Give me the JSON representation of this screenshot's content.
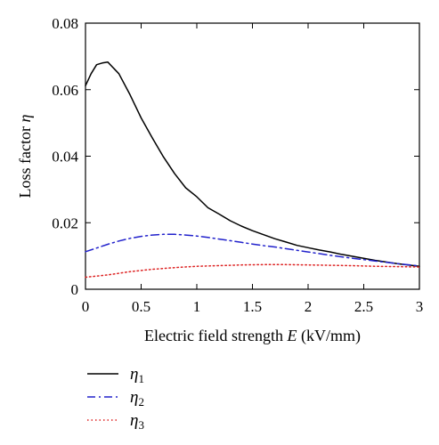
{
  "chart_data": {
    "type": "line",
    "xlabel_text": "Electric field strength ",
    "xlabel_symbol": "E",
    "xlabel_unit": " (kV/mm)",
    "ylabel_text": "Loss factor ",
    "ylabel_symbol": "η",
    "xlim": [
      0,
      3
    ],
    "ylim": [
      0,
      0.08
    ],
    "x_ticks": [
      "0",
      "0.5",
      "1",
      "1.5",
      "2",
      "2.5",
      "3"
    ],
    "y_ticks": [
      "0",
      "0.02",
      "0.04",
      "0.06",
      "0.08"
    ],
    "grid": false,
    "legend_position": "below",
    "series": [
      {
        "name": "η1",
        "symbol": "η",
        "subscript": "1",
        "color": "#000000",
        "dash": "solid",
        "x": [
          0,
          0.05,
          0.1,
          0.15,
          0.2,
          0.3,
          0.4,
          0.5,
          0.6,
          0.7,
          0.8,
          0.9,
          1.0,
          1.1,
          1.2,
          1.3,
          1.4,
          1.5,
          1.6,
          1.7,
          1.8,
          1.9,
          2.0,
          2.1,
          2.2,
          2.3,
          2.4,
          2.5,
          2.6,
          2.7,
          2.8,
          2.9,
          3.0
        ],
        "values": [
          0.0612,
          0.0648,
          0.0675,
          0.068,
          0.0683,
          0.0648,
          0.0585,
          0.0515,
          0.0455,
          0.0398,
          0.0348,
          0.0305,
          0.0278,
          0.0245,
          0.0226,
          0.0206,
          0.019,
          0.0176,
          0.0164,
          0.0152,
          0.0142,
          0.0132,
          0.0125,
          0.0118,
          0.0112,
          0.0105,
          0.0099,
          0.0093,
          0.0087,
          0.0082,
          0.0077,
          0.0073,
          0.0069
        ]
      },
      {
        "name": "η2",
        "symbol": "η",
        "subscript": "2",
        "color": "#2222cc",
        "dash": "dashdot",
        "x": [
          0,
          0.1,
          0.2,
          0.3,
          0.4,
          0.5,
          0.6,
          0.7,
          0.8,
          0.9,
          1.0,
          1.1,
          1.2,
          1.3,
          1.4,
          1.5,
          1.6,
          1.7,
          1.8,
          1.9,
          2.0,
          2.2,
          2.4,
          2.6,
          2.8,
          3.0
        ],
        "values": [
          0.0113,
          0.0124,
          0.0135,
          0.0145,
          0.0153,
          0.0159,
          0.0163,
          0.0165,
          0.0165,
          0.0163,
          0.016,
          0.0156,
          0.0151,
          0.0146,
          0.0141,
          0.0136,
          0.0131,
          0.0127,
          0.0122,
          0.0117,
          0.0112,
          0.0102,
          0.0093,
          0.0085,
          0.0077,
          0.007
        ]
      },
      {
        "name": "η3",
        "symbol": "η",
        "subscript": "3",
        "color": "#dd2222",
        "dash": "dotted",
        "x": [
          0,
          0.2,
          0.4,
          0.6,
          0.8,
          1.0,
          1.2,
          1.4,
          1.6,
          1.8,
          2.0,
          2.2,
          2.4,
          2.6,
          2.8,
          3.0
        ],
        "values": [
          0.0036,
          0.0043,
          0.0053,
          0.006,
          0.0065,
          0.0069,
          0.0071,
          0.0073,
          0.0074,
          0.0074,
          0.0073,
          0.0072,
          0.0071,
          0.0069,
          0.0068,
          0.0067
        ]
      }
    ]
  }
}
